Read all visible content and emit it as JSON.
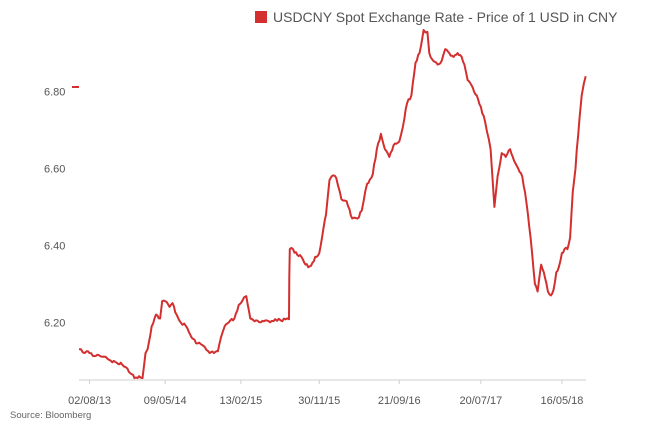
{
  "chart_data": {
    "type": "line",
    "title": "",
    "xlabel": "",
    "ylabel": "",
    "series": [
      {
        "name": "USDCNY Spot Exchange Rate - Price of 1 USD in CNY",
        "color": "#d32f2f",
        "points": [
          [
            "2013-06-24",
            6.13
          ],
          [
            "2013-07-08",
            6.122
          ],
          [
            "2013-07-22",
            6.125
          ],
          [
            "2013-08-02",
            6.12
          ],
          [
            "2013-08-20",
            6.112
          ],
          [
            "2013-09-05",
            6.115
          ],
          [
            "2013-10-01",
            6.11
          ],
          [
            "2013-10-20",
            6.1
          ],
          [
            "2013-11-10",
            6.095
          ],
          [
            "2013-12-01",
            6.09
          ],
          [
            "2013-12-20",
            6.08
          ],
          [
            "2014-01-05",
            6.065
          ],
          [
            "2014-01-15",
            6.055
          ],
          [
            "2014-02-01",
            6.06
          ],
          [
            "2014-02-14",
            6.055
          ],
          [
            "2014-02-25",
            6.12
          ],
          [
            "2014-03-05",
            6.13
          ],
          [
            "2014-03-20",
            6.19
          ],
          [
            "2014-04-05",
            6.22
          ],
          [
            "2014-04-20",
            6.21
          ],
          [
            "2014-04-28",
            6.255
          ],
          [
            "2014-05-09",
            6.255
          ],
          [
            "2014-05-25",
            6.24
          ],
          [
            "2014-06-05",
            6.25
          ],
          [
            "2014-06-20",
            6.22
          ],
          [
            "2014-07-05",
            6.2
          ],
          [
            "2014-07-25",
            6.19
          ],
          [
            "2014-08-15",
            6.16
          ],
          [
            "2014-09-05",
            6.145
          ],
          [
            "2014-09-25",
            6.14
          ],
          [
            "2014-10-15",
            6.125
          ],
          [
            "2014-11-05",
            6.12
          ],
          [
            "2014-11-20",
            6.125
          ],
          [
            "2014-12-01",
            6.16
          ],
          [
            "2014-12-15",
            6.19
          ],
          [
            "2015-01-05",
            6.205
          ],
          [
            "2015-01-20",
            6.21
          ],
          [
            "2015-02-05",
            6.245
          ],
          [
            "2015-02-13",
            6.25
          ],
          [
            "2015-02-25",
            6.265
          ],
          [
            "2015-03-05",
            6.268
          ],
          [
            "2015-03-20",
            6.21
          ],
          [
            "2015-04-10",
            6.205
          ],
          [
            "2015-04-28",
            6.2
          ],
          [
            "2015-05-15",
            6.205
          ],
          [
            "2015-06-01",
            6.2
          ],
          [
            "2015-06-20",
            6.208
          ],
          [
            "2015-07-10",
            6.205
          ],
          [
            "2015-08-10",
            6.208
          ],
          [
            "2015-08-11",
            6.32
          ],
          [
            "2015-08-13",
            6.39
          ],
          [
            "2015-08-25",
            6.39
          ],
          [
            "2015-09-10",
            6.375
          ],
          [
            "2015-09-25",
            6.37
          ],
          [
            "2015-10-10",
            6.35
          ],
          [
            "2015-10-25",
            6.345
          ],
          [
            "2015-11-05",
            6.355
          ],
          [
            "2015-11-15",
            6.37
          ],
          [
            "2015-11-30",
            6.38
          ],
          [
            "2015-12-10",
            6.42
          ],
          [
            "2015-12-25",
            6.48
          ],
          [
            "2016-01-07",
            6.57
          ],
          [
            "2016-01-15",
            6.58
          ],
          [
            "2016-02-01",
            6.575
          ],
          [
            "2016-02-20",
            6.52
          ],
          [
            "2016-03-10",
            6.515
          ],
          [
            "2016-03-31",
            6.47
          ],
          [
            "2016-04-20",
            6.47
          ],
          [
            "2016-05-05",
            6.49
          ],
          [
            "2016-05-25",
            6.56
          ],
          [
            "2016-06-15",
            6.585
          ],
          [
            "2016-06-30",
            6.65
          ],
          [
            "2016-07-15",
            6.69
          ],
          [
            "2016-07-30",
            6.65
          ],
          [
            "2016-08-15",
            6.63
          ],
          [
            "2016-09-05",
            6.665
          ],
          [
            "2016-09-21",
            6.67
          ],
          [
            "2016-10-05",
            6.71
          ],
          [
            "2016-10-20",
            6.77
          ],
          [
            "2016-11-05",
            6.79
          ],
          [
            "2016-11-20",
            6.875
          ],
          [
            "2016-12-05",
            6.9
          ],
          [
            "2016-12-20",
            6.96
          ],
          [
            "2017-01-03",
            6.955
          ],
          [
            "2017-01-10",
            6.9
          ],
          [
            "2017-01-25",
            6.88
          ],
          [
            "2017-02-10",
            6.87
          ],
          [
            "2017-02-25",
            6.88
          ],
          [
            "2017-03-10",
            6.91
          ],
          [
            "2017-03-25",
            6.9
          ],
          [
            "2017-04-10",
            6.89
          ],
          [
            "2017-04-25",
            6.9
          ],
          [
            "2017-05-10",
            6.89
          ],
          [
            "2017-05-20",
            6.87
          ],
          [
            "2017-06-01",
            6.83
          ],
          [
            "2017-06-20",
            6.81
          ],
          [
            "2017-07-05",
            6.79
          ],
          [
            "2017-07-20",
            6.76
          ],
          [
            "2017-08-05",
            6.72
          ],
          [
            "2017-08-25",
            6.65
          ],
          [
            "2017-09-08",
            6.5
          ],
          [
            "2017-09-20",
            6.58
          ],
          [
            "2017-10-05",
            6.64
          ],
          [
            "2017-10-20",
            6.63
          ],
          [
            "2017-11-05",
            6.65
          ],
          [
            "2017-11-20",
            6.62
          ],
          [
            "2017-12-05",
            6.6
          ],
          [
            "2017-12-20",
            6.58
          ],
          [
            "2018-01-05",
            6.51
          ],
          [
            "2018-01-20",
            6.42
          ],
          [
            "2018-02-05",
            6.3
          ],
          [
            "2018-02-15",
            6.28
          ],
          [
            "2018-02-28",
            6.35
          ],
          [
            "2018-03-10",
            6.33
          ],
          [
            "2018-03-25",
            6.28
          ],
          [
            "2018-04-05",
            6.27
          ],
          [
            "2018-04-15",
            6.285
          ],
          [
            "2018-04-25",
            6.33
          ],
          [
            "2018-05-05",
            6.345
          ],
          [
            "2018-05-16",
            6.38
          ],
          [
            "2018-05-25",
            6.39
          ],
          [
            "2018-06-05",
            6.39
          ],
          [
            "2018-06-15",
            6.42
          ],
          [
            "2018-06-25",
            6.54
          ],
          [
            "2018-07-05",
            6.6
          ],
          [
            "2018-07-10",
            6.65
          ],
          [
            "2018-07-20",
            6.73
          ],
          [
            "2018-07-28",
            6.79
          ],
          [
            "2018-08-05",
            6.82
          ],
          [
            "2018-08-12",
            6.84
          ]
        ]
      }
    ],
    "x_ticks": [
      "02/08/13",
      "09/05/14",
      "13/02/15",
      "30/11/15",
      "21/09/16",
      "20/07/17",
      "16/05/18"
    ],
    "x_tick_dates": [
      "2013-08-02",
      "2014-05-09",
      "2015-02-13",
      "2015-11-30",
      "2016-09-21",
      "2017-07-20",
      "2018-05-16"
    ],
    "xlim": [
      "2013-06-24",
      "2018-08-13"
    ],
    "y_ticks": [
      "6.20",
      "6.40",
      "6.60",
      "6.80"
    ],
    "y_tick_values": [
      6.2,
      6.4,
      6.6,
      6.8
    ],
    "ylim": [
      6.05,
      6.96
    ],
    "grid": false,
    "legend_position": "top-right",
    "source": "Source: Bloomberg"
  }
}
